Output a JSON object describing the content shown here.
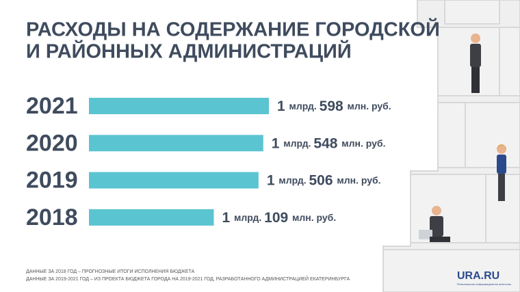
{
  "chart_data": {
    "type": "bar",
    "orientation": "horizontal",
    "title": [
      "РАСХОДЫ НА СОДЕРЖАНИЕ ГОРОДСКОЙ",
      "И РАЙОННЫХ АДМИНИСТРАЦИЙ"
    ],
    "categories": [
      "2021",
      "2020",
      "2019",
      "2018"
    ],
    "values": [
      1598,
      1548,
      1506,
      1109
    ],
    "value_labels": [
      "1 млрд. 598 млн. руб.",
      "1 млрд. 548 млн. руб.",
      "1 млрд. 506 млн. руб.",
      "1 млрд. 109 млн. руб."
    ],
    "color": "#5bc4d1",
    "notes": [
      "ДАННЫЕ ЗА 2018 ГОД – ПРОГНОЗНЫЕ ИТОГИ ИСПОЛНЕНИЯ БЮДЖЕТА",
      "ДАННЫЕ ЗА 2019-2021 ГОД – ИЗ ПРОЕКТА БЮДЖЕТА ГОРОДА НА 2019-2021 ГОД, РАЗРАБОТАННОГО АДМИНИСТРАЦИЕЙ ЕКАТЕРИНБУРГА"
    ],
    "logo": "URA.RU",
    "logo_subtitle": "Региональное информационное агентство"
  }
}
